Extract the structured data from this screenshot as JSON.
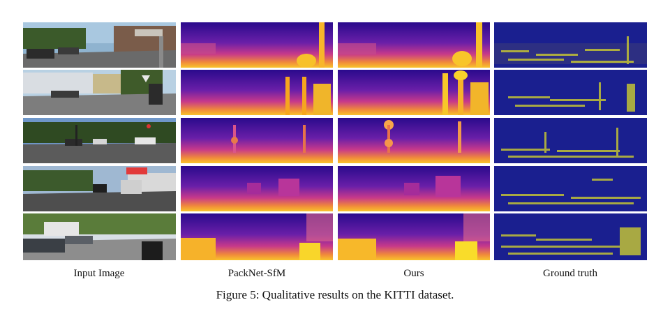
{
  "columns": [
    "Input Image",
    "PackNet-SfM",
    "Ours",
    "Ground truth"
  ],
  "caption": "Figure 5: Qualitative results on the KITTI dataset.",
  "palette": {
    "far": "#2a0a8c",
    "mid": "#b02a9b",
    "near": "#f6a61f",
    "closest": "#f9e62a",
    "gt_background": "#1a1f8f",
    "gt_points": "#d8d82a"
  }
}
